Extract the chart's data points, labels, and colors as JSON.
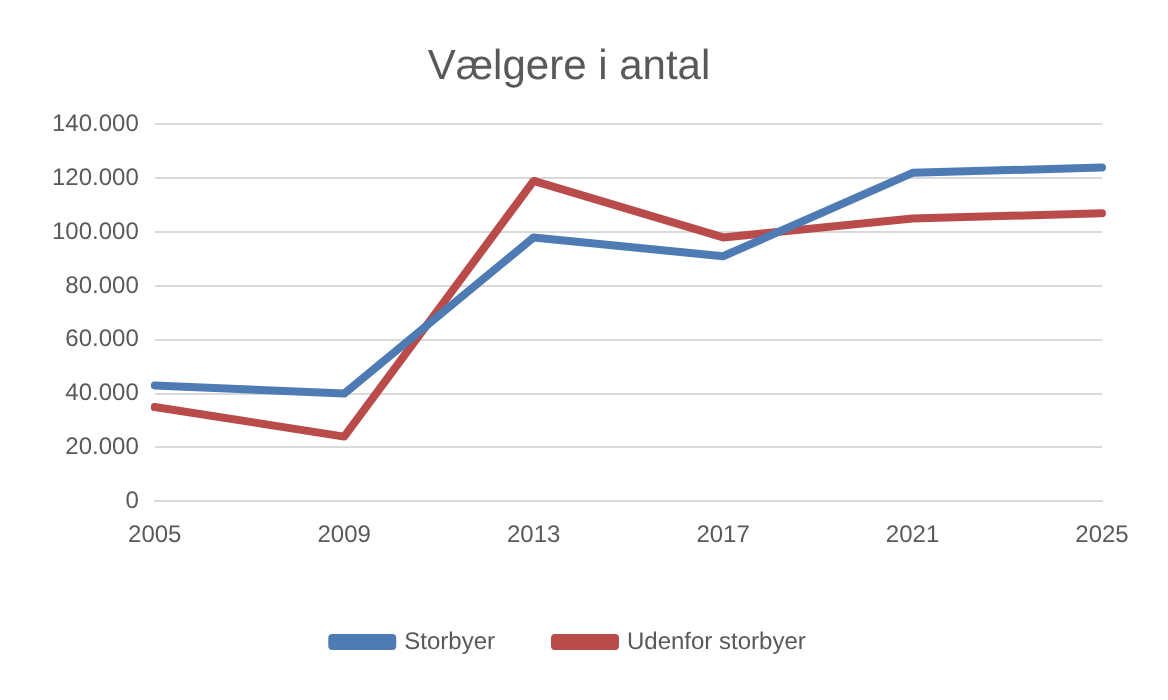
{
  "chart_data": {
    "type": "line",
    "title": "Vælgere i antal",
    "categories": [
      "2005",
      "2009",
      "2013",
      "2017",
      "2021",
      "2025"
    ],
    "series": [
      {
        "name": "Storbyer",
        "color": "#4f7bb5",
        "values": [
          43000,
          40000,
          98000,
          91000,
          122000,
          124000
        ]
      },
      {
        "name": "Udenfor storbyer",
        "color": "#b94c4a",
        "values": [
          35000,
          24000,
          119000,
          98000,
          105000,
          107000
        ]
      }
    ],
    "ylim": [
      0,
      140000
    ],
    "yticks": [
      {
        "value": 0,
        "label": "0"
      },
      {
        "value": 20000,
        "label": "20.000"
      },
      {
        "value": 40000,
        "label": "40.000"
      },
      {
        "value": 60000,
        "label": "60.000"
      },
      {
        "value": 80000,
        "label": "80.000"
      },
      {
        "value": 100000,
        "label": "100.000"
      },
      {
        "value": 120000,
        "label": "120.000"
      },
      {
        "value": 140000,
        "label": "140.000"
      }
    ],
    "grid": "y",
    "legend": "bottom",
    "marker": "none",
    "line_style": "solid"
  }
}
